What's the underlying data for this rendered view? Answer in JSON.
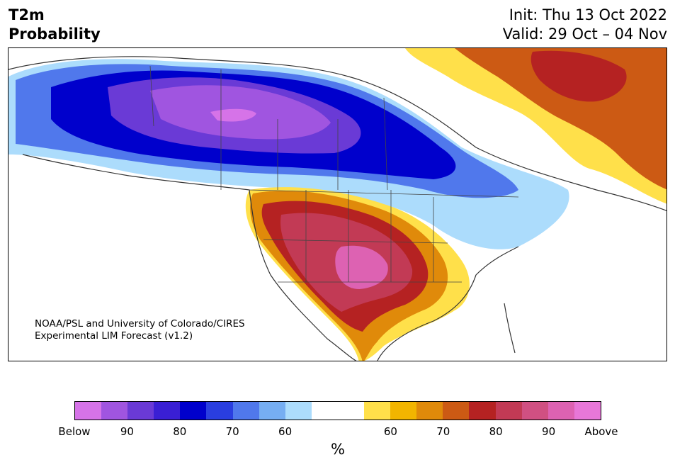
{
  "title": {
    "left_line1": "T2m",
    "left_line2": "Probability",
    "right_line1": "Init: Thu 13 Oct 2022",
    "right_line2": "Valid: 29 Oct – 04 Nov"
  },
  "credit": {
    "line1": "NOAA/PSL and University of Colorado/CIRES",
    "line2": "Experimental LIM Forecast (v1.2)"
  },
  "colorbar": {
    "colors": [
      "#d673e8",
      "#a055e0",
      "#6a3ad6",
      "#3a1fd4",
      "#0000cc",
      "#2a3ee0",
      "#5078ec",
      "#76aef2",
      "#acdcfc",
      "#ffffff",
      "#ffffff",
      "#ffe04a",
      "#f2b500",
      "#e08a0a",
      "#cc5a14",
      "#b52222",
      "#c23a55",
      "#d05082",
      "#dd62b2",
      "#e877d8"
    ],
    "ticks": [
      "Below",
      "90",
      "80",
      "70",
      "60",
      "60",
      "70",
      "80",
      "90",
      "Above"
    ],
    "unit": "%"
  },
  "map": {
    "ocean": "#ffffff",
    "land_outline": "#333333"
  }
}
